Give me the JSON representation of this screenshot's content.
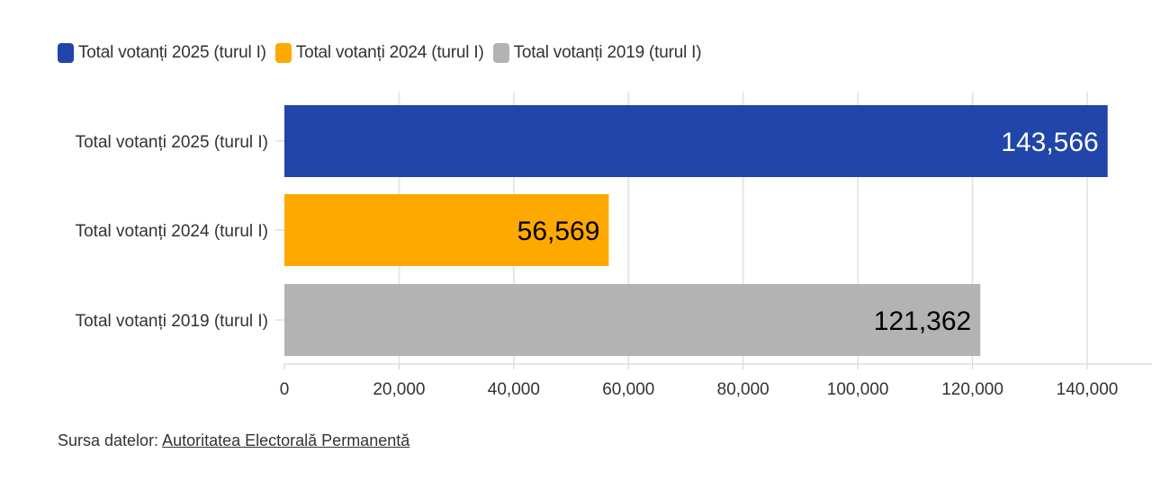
{
  "chart_data": {
    "type": "bar",
    "orientation": "horizontal",
    "categories": [
      "Total votanți 2025 (turul I)",
      "Total votanți 2024 (turul I)",
      "Total votanți 2019 (turul I)"
    ],
    "values": [
      143566,
      56569,
      121362
    ],
    "value_labels": [
      "143,566",
      "56,569",
      "121,362"
    ],
    "colors": [
      "#2145a8",
      "#ffa800",
      "#b3b3b3"
    ],
    "value_label_colors": [
      "#ffffff",
      "#000000",
      "#000000"
    ],
    "xlim": [
      0,
      145000
    ],
    "x_ticks": [
      0,
      20000,
      40000,
      60000,
      80000,
      100000,
      120000,
      140000
    ],
    "x_tick_labels": [
      "0",
      "20,000",
      "40,000",
      "60,000",
      "80,000",
      "100,000",
      "120,000",
      "140,000"
    ],
    "grid": true,
    "legend_placement": "top-left",
    "title": "",
    "xlabel": "",
    "ylabel": ""
  },
  "legend": [
    {
      "label": "Total votanți 2025 (turul I)",
      "color": "#2145a8"
    },
    {
      "label": "Total votanți 2024 (turul I)",
      "color": "#ffa800"
    },
    {
      "label": "Total votanți 2019 (turul I)",
      "color": "#b3b3b3"
    }
  ],
  "source": {
    "prefix": "Sursa datelor: ",
    "link_text": "Autoritatea Electorală Permanentă"
  }
}
